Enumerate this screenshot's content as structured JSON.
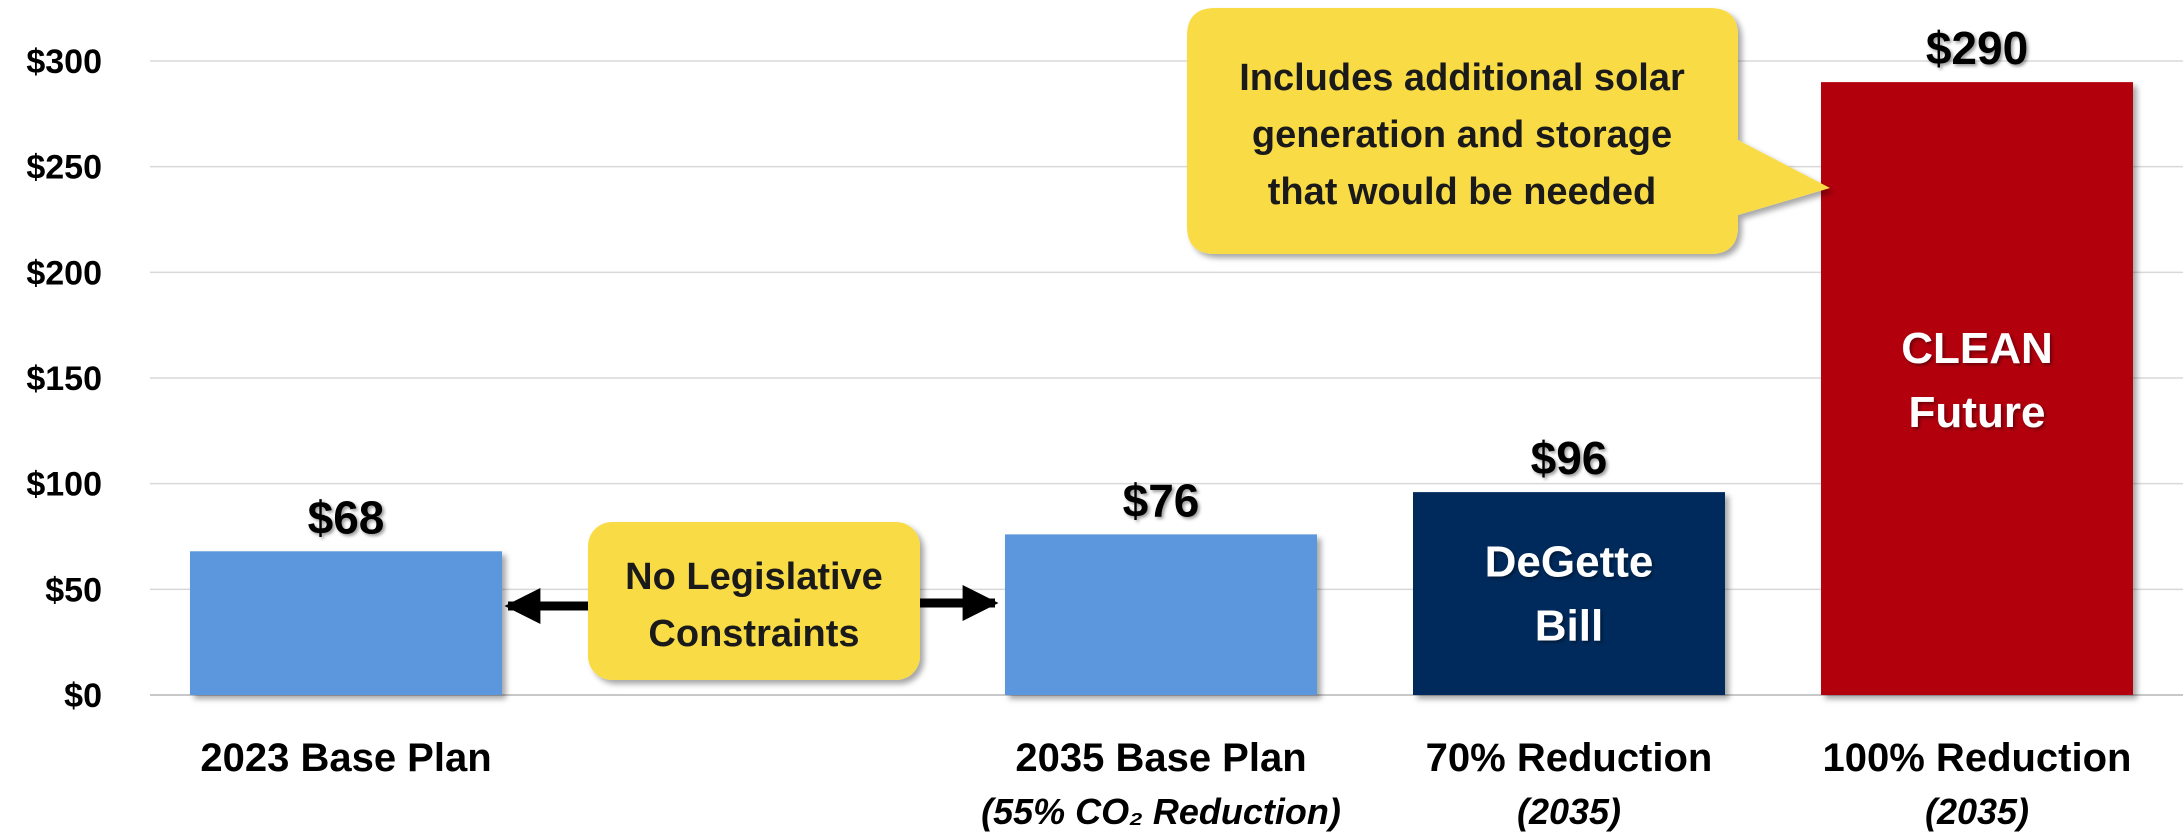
{
  "chart_data": {
    "type": "bar",
    "categories": [
      "2023 Base Plan",
      "2035 Base Plan",
      "70% Reduction",
      "100% Reduction"
    ],
    "category_sublabels": [
      "",
      "(55% CO₂ Reduction)",
      "(2035)",
      "(2035)"
    ],
    "values": [
      68,
      76,
      96,
      290
    ],
    "value_labels": [
      "$68",
      "$76",
      "$96",
      "$290"
    ],
    "bar_inner_labels": [
      [],
      [],
      [
        "DeGette",
        "Bill"
      ],
      [
        "CLEAN",
        "Future"
      ]
    ],
    "bar_colors": [
      "#5b96dd",
      "#5b96dd",
      "#002b5c",
      "#b30009"
    ],
    "ylim": [
      0,
      300
    ],
    "yticks": [
      0,
      50,
      100,
      150,
      200,
      250,
      300
    ],
    "ytick_labels": [
      "$0",
      "$50",
      "$100",
      "$150",
      "$200",
      "$250",
      "$300"
    ],
    "grid": true,
    "annotations": [
      {
        "lines": [
          "No Legislative",
          "Constraints"
        ],
        "color": "#f9dc45"
      },
      {
        "lines": [
          "Includes additional solar",
          "generation and storage",
          "that would be needed"
        ],
        "color": "#f9dc45"
      }
    ]
  }
}
